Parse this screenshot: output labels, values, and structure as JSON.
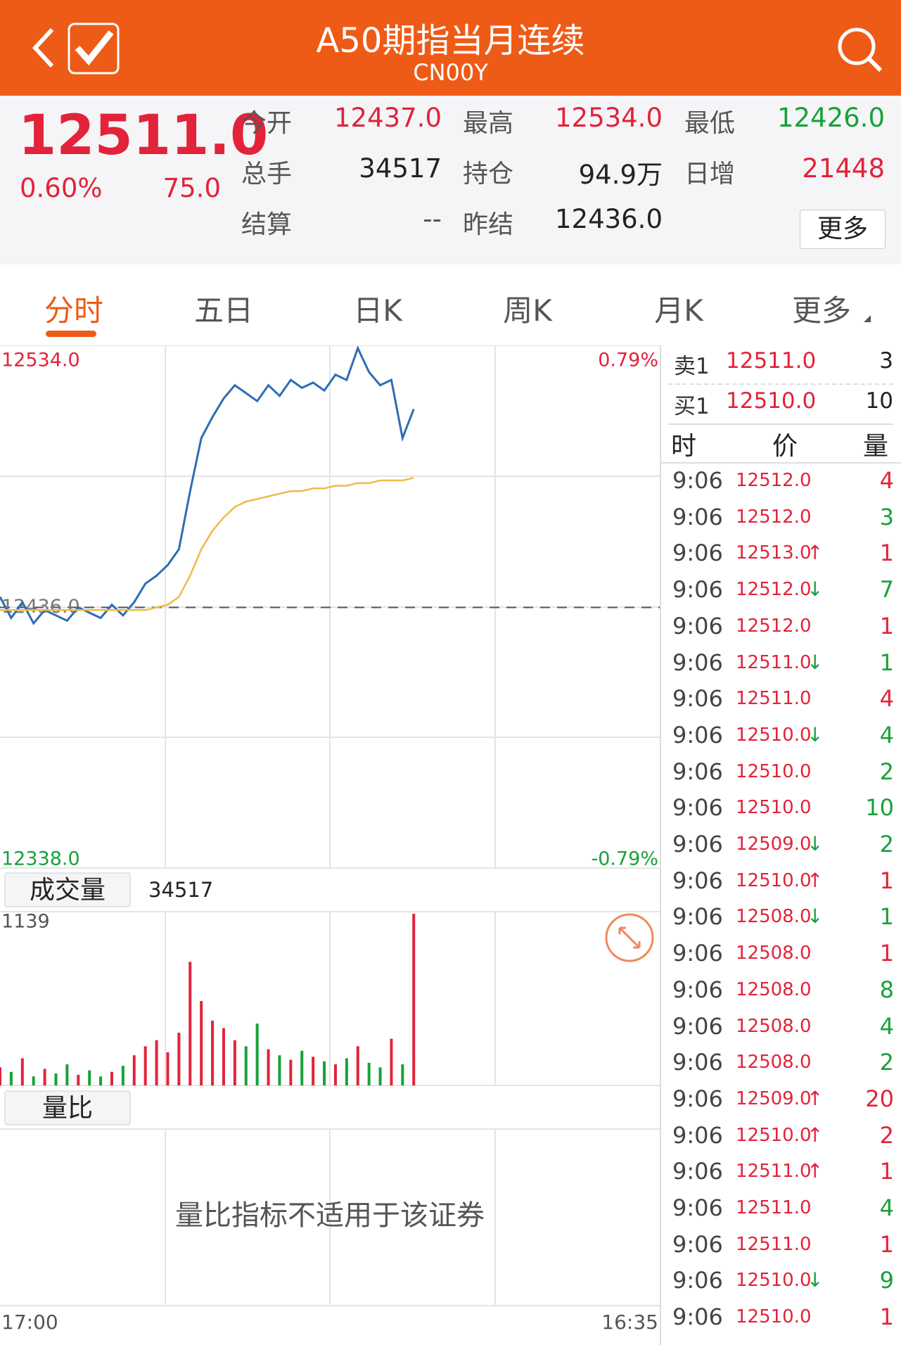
{
  "header": {
    "title": "A50期指当月连续",
    "subtitle": "CN00Y"
  },
  "quote": {
    "price": "12511.0",
    "change_pct": "0.60%",
    "change": "75.0",
    "fields": [
      {
        "label": "今开",
        "value": "12437.0",
        "color": "#e2233a"
      },
      {
        "label": "最高",
        "value": "12534.0",
        "color": "#e2233a"
      },
      {
        "label": "最低",
        "value": "12426.0",
        "color": "#18a139"
      },
      {
        "label": "总手",
        "value": "34517",
        "color": "#222222"
      },
      {
        "label": "持仓",
        "value": "94.9万",
        "color": "#222222"
      },
      {
        "label": "日增",
        "value": "21448",
        "color": "#e2233a"
      },
      {
        "label": "结算",
        "value": "--",
        "color": "#555555"
      },
      {
        "label": "昨结",
        "value": "12436.0",
        "color": "#222222"
      }
    ],
    "more_button": "更多"
  },
  "tabs": [
    "分时",
    "五日",
    "日K",
    "周K",
    "月K",
    "更多"
  ],
  "chart_data": {
    "type": "line",
    "series": [
      {
        "name": "价格",
        "color": "#2f6db5",
        "values": [
          12440,
          12432,
          12438,
          12430,
          12435,
          12433,
          12431,
          12436,
          12434,
          12432,
          12437,
          12433,
          12438,
          12445,
          12448,
          12452,
          12458,
          12480,
          12500,
          12508,
          12515,
          12520,
          12517,
          12514,
          12520,
          12516,
          12522,
          12519,
          12521,
          12518,
          12524,
          12522,
          12534,
          12525,
          12520,
          12522,
          12500,
          12511,
          null,
          null,
          null,
          null,
          null,
          null,
          null,
          null,
          null,
          null,
          null,
          null,
          null,
          null,
          null,
          null,
          null,
          null,
          null,
          null,
          null,
          null
        ]
      },
      {
        "name": "均价",
        "color": "#f0b94a",
        "values": [
          12435,
          12435,
          12435,
          12435,
          12435,
          12435,
          12435,
          12435,
          12435,
          12435,
          12435,
          12435,
          12435,
          12435,
          12436,
          12437,
          12440,
          12448,
          12458,
          12465,
          12470,
          12474,
          12476,
          12477,
          12478,
          12479,
          12480,
          12480,
          12481,
          12481,
          12482,
          12482,
          12483,
          12483,
          12484,
          12484,
          12484,
          12485,
          null,
          null,
          null,
          null,
          null,
          null,
          null,
          null,
          null,
          null,
          null,
          null,
          null,
          null,
          null,
          null,
          null,
          null,
          null,
          null,
          null,
          null
        ]
      }
    ],
    "ylim": [
      12338,
      12534
    ],
    "yticks": [
      {
        "value": 12534,
        "label": "12534.0"
      },
      {
        "value": 12436,
        "label": "12436.0"
      },
      {
        "value": 12338,
        "label": "12338.0"
      }
    ],
    "y2lim": [
      -0.79,
      0.79
    ],
    "y2ticks": [
      {
        "value": 0.79,
        "label": "0.79%"
      },
      {
        "value": -0.79,
        "label": "-0.79%"
      }
    ],
    "x_labels": [
      "17:00",
      "16:35"
    ]
  },
  "volume": {
    "type": "bar",
    "label": "成交量",
    "total": "34517",
    "ylim": [
      0,
      1139
    ],
    "yticks": [
      1139
    ],
    "values": [
      120,
      90,
      180,
      60,
      110,
      80,
      140,
      70,
      100,
      60,
      90,
      130,
      200,
      260,
      300,
      220,
      350,
      820,
      560,
      430,
      380,
      300,
      260,
      410,
      240,
      200,
      170,
      230,
      190,
      160,
      140,
      180,
      260,
      150,
      120,
      310,
      140,
      1139,
      null,
      null,
      null,
      null,
      null,
      null,
      null,
      null,
      null,
      null,
      null,
      null,
      null,
      null,
      null,
      null,
      null,
      null,
      null,
      null,
      null,
      null
    ],
    "up_color": "#e2233a",
    "down_color": "#18a139"
  },
  "ratio": {
    "label": "量比",
    "notice": "量比指标不适用于该证券"
  },
  "order_book": [
    {
      "label": "卖1",
      "price": "12511.0",
      "qty": "3"
    },
    {
      "label": "买1",
      "price": "12510.0",
      "qty": "10"
    }
  ],
  "trades_header": [
    "时",
    "价",
    "量"
  ],
  "trades": [
    {
      "time": "9:06",
      "price": "12512.0",
      "arrow": "",
      "qty": "4",
      "color": "#e2233a"
    },
    {
      "time": "9:06",
      "price": "12512.0",
      "arrow": "",
      "qty": "3",
      "color": "#18a139"
    },
    {
      "time": "9:06",
      "price": "12513.0",
      "arrow": "↑",
      "qty": "1",
      "color": "#e2233a"
    },
    {
      "time": "9:06",
      "price": "12512.0",
      "arrow": "↓",
      "qty": "7",
      "color": "#18a139"
    },
    {
      "time": "9:06",
      "price": "12512.0",
      "arrow": "",
      "qty": "1",
      "color": "#e2233a"
    },
    {
      "time": "9:06",
      "price": "12511.0",
      "arrow": "↓",
      "qty": "1",
      "color": "#18a139"
    },
    {
      "time": "9:06",
      "price": "12511.0",
      "arrow": "",
      "qty": "4",
      "color": "#e2233a"
    },
    {
      "time": "9:06",
      "price": "12510.0",
      "arrow": "↓",
      "qty": "4",
      "color": "#18a139"
    },
    {
      "time": "9:06",
      "price": "12510.0",
      "arrow": "",
      "qty": "2",
      "color": "#18a139"
    },
    {
      "time": "9:06",
      "price": "12510.0",
      "arrow": "",
      "qty": "10",
      "color": "#18a139"
    },
    {
      "time": "9:06",
      "price": "12509.0",
      "arrow": "↓",
      "qty": "2",
      "color": "#18a139"
    },
    {
      "time": "9:06",
      "price": "12510.0",
      "arrow": "↑",
      "qty": "1",
      "color": "#e2233a"
    },
    {
      "time": "9:06",
      "price": "12508.0",
      "arrow": "↓",
      "qty": "1",
      "color": "#18a139"
    },
    {
      "time": "9:06",
      "price": "12508.0",
      "arrow": "",
      "qty": "1",
      "color": "#e2233a"
    },
    {
      "time": "9:06",
      "price": "12508.0",
      "arrow": "",
      "qty": "8",
      "color": "#18a139"
    },
    {
      "time": "9:06",
      "price": "12508.0",
      "arrow": "",
      "qty": "4",
      "color": "#18a139"
    },
    {
      "time": "9:06",
      "price": "12508.0",
      "arrow": "",
      "qty": "2",
      "color": "#18a139"
    },
    {
      "time": "9:06",
      "price": "12509.0",
      "arrow": "↑",
      "qty": "20",
      "color": "#e2233a"
    },
    {
      "time": "9:06",
      "price": "12510.0",
      "arrow": "↑",
      "qty": "2",
      "color": "#e2233a"
    },
    {
      "time": "9:06",
      "price": "12511.0",
      "arrow": "↑",
      "qty": "1",
      "color": "#e2233a"
    },
    {
      "time": "9:06",
      "price": "12511.0",
      "arrow": "",
      "qty": "4",
      "color": "#18a139"
    },
    {
      "time": "9:06",
      "price": "12511.0",
      "arrow": "",
      "qty": "1",
      "color": "#e2233a"
    },
    {
      "time": "9:06",
      "price": "12510.0",
      "arrow": "↓",
      "qty": "9",
      "color": "#18a139"
    },
    {
      "time": "9:06",
      "price": "12510.0",
      "arrow": "",
      "qty": "1",
      "color": "#e2233a"
    }
  ]
}
